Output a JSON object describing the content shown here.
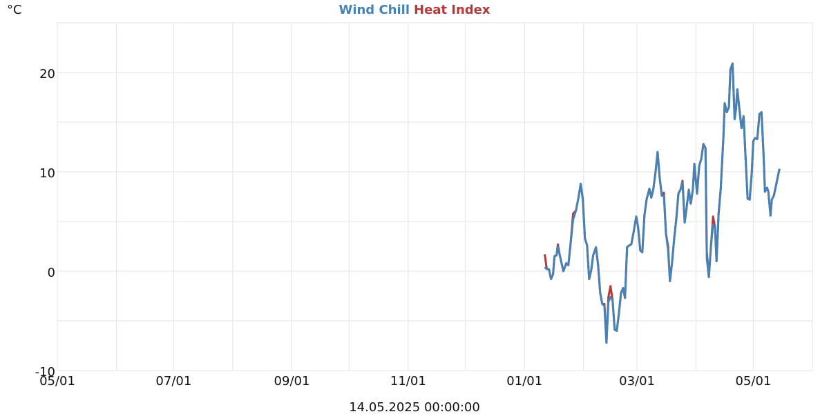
{
  "chart_data": {
    "type": "line",
    "y_label": "°C",
    "x_label": "14.05.2025 00:00:00",
    "xlim": [
      0,
      396
    ],
    "xticks": [
      {
        "value": 0,
        "label": "05/01"
      },
      {
        "value": 61,
        "label": "07/01"
      },
      {
        "value": 123,
        "label": "09/01"
      },
      {
        "value": 184,
        "label": "11/01"
      },
      {
        "value": 245,
        "label": "01/01"
      },
      {
        "value": 304,
        "label": "03/01"
      },
      {
        "value": 365,
        "label": "05/01"
      }
    ],
    "minor_xticks": [
      31,
      92,
      153,
      214,
      276,
      335
    ],
    "ylim": [
      -10,
      25
    ],
    "yticks": [
      -10,
      0,
      10,
      20
    ],
    "minor_yticks": [
      -5,
      5,
      15,
      25
    ],
    "grid": true,
    "x": [
      255.6,
      256.7,
      257.8,
      258.9,
      260.0,
      260.7,
      261.8,
      262.5,
      263.6,
      265.4,
      266.9,
      268.0,
      269.1,
      270.5,
      272.0,
      273.4,
      274.5,
      275.6,
      276.7,
      277.8,
      278.9,
      280.0,
      281.0,
      282.5,
      283.6,
      284.7,
      285.8,
      286.9,
      288.0,
      289.0,
      290.1,
      291.2,
      292.3,
      293.4,
      294.5,
      295.6,
      296.7,
      297.7,
      298.8,
      299.9,
      301.0,
      302.1,
      303.6,
      304.6,
      305.7,
      306.8,
      307.9,
      309.0,
      310.5,
      311.5,
      312.6,
      313.7,
      314.8,
      315.9,
      317.0,
      318.1,
      319.2,
      320.3,
      321.3,
      322.4,
      323.5,
      324.6,
      325.7,
      326.8,
      327.9,
      329.0,
      330.1,
      331.2,
      332.2,
      333.3,
      334.1,
      335.5,
      336.6,
      337.7,
      338.8,
      339.9,
      340.6,
      341.7,
      342.8,
      343.9,
      344.9,
      345.7,
      346.8,
      347.9,
      349.3,
      350.0,
      351.1,
      352.2,
      353.0,
      354.1,
      355.2,
      355.9,
      356.6,
      357.7,
      358.8,
      359.9,
      361.0,
      362.0,
      363.1,
      364.2,
      365.0,
      366.0,
      367.1,
      368.2,
      369.3,
      370.4,
      371.1,
      372.2,
      372.9,
      374.0,
      374.7,
      375.8,
      378.7
    ],
    "series": [
      {
        "name": "Wind Chill",
        "color": "#4682b4",
        "values": [
          0.4,
          0.2,
          0.2,
          -0.8,
          -0.3,
          1.5,
          1.6,
          2.5,
          1.5,
          0,
          0.8,
          0.6,
          2.6,
          5.2,
          6.1,
          7.5,
          8.8,
          7.2,
          3.3,
          2.6,
          -0.8,
          0.1,
          1.6,
          2.4,
          0.6,
          -2.2,
          -3.3,
          -3.5,
          -7.2,
          -3.1,
          -2.6,
          -2.9,
          -5.9,
          -6.0,
          -4.3,
          -2.2,
          -1.7,
          -2.7,
          2.4,
          2.6,
          2.7,
          3.8,
          5.5,
          4.4,
          2.1,
          1.9,
          5.6,
          7.2,
          8.3,
          7.4,
          8.3,
          9.9,
          12.0,
          9.4,
          7.6,
          7.6,
          3.8,
          2.1,
          -1.0,
          0.9,
          3.3,
          5.2,
          7.8,
          8.2,
          8.9,
          4.9,
          6.5,
          8.2,
          6.8,
          8.2,
          10.8,
          7.8,
          10.6,
          11.3,
          12.7,
          12.4,
          1.3,
          -0.6,
          2.6,
          4.7,
          4.4,
          1.0,
          5.8,
          8.2,
          13.4,
          16.9,
          16.0,
          16.5,
          20.3,
          20.9,
          15.3,
          16.3,
          18.3,
          16.3,
          14.4,
          15.6,
          11.2,
          7.3,
          7.2,
          9.9,
          13.1,
          13.4,
          13.3,
          15.8,
          16.0,
          11.7,
          8.0,
          8.4,
          8.0,
          5.6,
          7.2,
          7.6,
          10.3
        ]
      },
      {
        "name": "Heat Index",
        "color": "#b33a3a",
        "values": [
          1.7,
          0.2,
          0.2,
          -0.8,
          -0.3,
          1.5,
          1.6,
          2.7,
          1.5,
          0,
          0.8,
          0.6,
          2.6,
          5.8,
          6.1,
          7.5,
          8.8,
          7.2,
          3.3,
          2.6,
          -0.8,
          0.1,
          1.6,
          2.4,
          0.6,
          -2.2,
          -3.3,
          -3.3,
          -7.2,
          -2.6,
          -1.5,
          -2.9,
          -5.9,
          -6.0,
          -4.3,
          -2.2,
          -1.7,
          -2.7,
          2.4,
          2.6,
          2.7,
          3.8,
          5.5,
          4.4,
          2.1,
          1.9,
          5.6,
          7.2,
          8.3,
          7.4,
          8.3,
          9.9,
          12.0,
          9.4,
          7.6,
          7.9,
          3.8,
          2.5,
          -1.0,
          0.9,
          3.3,
          5.2,
          7.8,
          8.2,
          9.1,
          4.9,
          6.5,
          8.2,
          6.8,
          8.2,
          10.8,
          7.8,
          10.6,
          11.3,
          12.8,
          12.4,
          2.0,
          -0.6,
          2.6,
          5.5,
          4.4,
          1.0,
          5.8,
          8.2,
          13.4,
          16.9,
          16.0,
          16.5,
          20.3,
          20.9,
          15.3,
          16.3,
          18.3,
          16.3,
          14.4,
          15.6,
          11.2,
          7.3,
          7.2,
          9.9,
          13.1,
          13.4,
          13.3,
          15.8,
          16.0,
          11.7,
          8.0,
          8.4,
          8.0,
          5.6,
          7.2,
          7.6,
          10.3
        ]
      }
    ],
    "draw_order": [
      1,
      0
    ]
  }
}
